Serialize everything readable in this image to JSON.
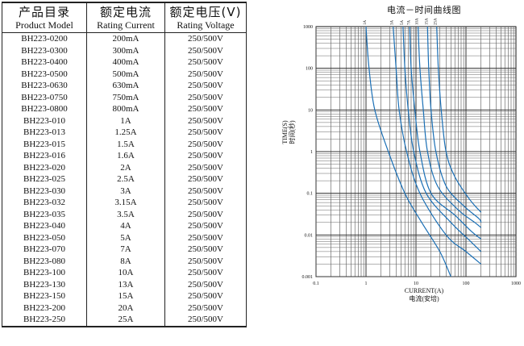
{
  "table": {
    "headers": [
      {
        "cn": "产品目录",
        "en": "Product Model"
      },
      {
        "cn": "额定电流",
        "en": "Rating Current"
      },
      {
        "cn": "额定电压(V)",
        "en": "Rating Voltage"
      }
    ],
    "rows": [
      [
        "BH223-0200",
        "200mA",
        "250/500V"
      ],
      [
        "BH223-0300",
        "300mA",
        "250/500V"
      ],
      [
        "BH223-0400",
        "400mA",
        "250/500V"
      ],
      [
        "BH223-0500",
        "500mA",
        "250/500V"
      ],
      [
        "BH223-0630",
        "630mA",
        "250/500V"
      ],
      [
        "BH223-0750",
        "750mA",
        "250/500V"
      ],
      [
        "BH223-0800",
        "800mA",
        "250/500V"
      ],
      [
        "BH223-010",
        "1A",
        "250/500V"
      ],
      [
        "BH223-013",
        "1.25A",
        "250/500V"
      ],
      [
        "BH223-015",
        "1.5A",
        "250/500V"
      ],
      [
        "BH223-016",
        "1.6A",
        "250/500V"
      ],
      [
        "BH223-020",
        "2A",
        "250/500V"
      ],
      [
        "BH223-025",
        "2.5A",
        "250/500V"
      ],
      [
        "BH223-030",
        "3A",
        "250/500V"
      ],
      [
        "BH223-032",
        "3.15A",
        "250/500V"
      ],
      [
        "BH223-035",
        "3.5A",
        "250/500V"
      ],
      [
        "BH223-040",
        "4A",
        "250/500V"
      ],
      [
        "BH223-050",
        "5A",
        "250/500V"
      ],
      [
        "BH223-070",
        "7A",
        "250/500V"
      ],
      [
        "BH223-080",
        "8A",
        "250/500V"
      ],
      [
        "BH223-100",
        "10A",
        "250/500V"
      ],
      [
        "BH223-130",
        "13A",
        "250/500V"
      ],
      [
        "BH223-150",
        "15A",
        "250/500V"
      ],
      [
        "BH223-200",
        "20A",
        "250/500V"
      ],
      [
        "BH223-250",
        "25A",
        "250/500V"
      ]
    ]
  },
  "chart": {
    "title": "电流－时间曲线图",
    "ylabel_en": "TIME(S)",
    "ylabel_cn": "时间(秒)",
    "xlabel_en": "CURRENT(A)",
    "xlabel_cn": "电流(安培)",
    "curve_color": "#1a6fb5"
  },
  "chart_data": {
    "type": "line",
    "title": "电流－时间曲线图",
    "xlabel": "CURRENT(A) 电流(安培)",
    "ylabel": "TIME(S) 时间(秒)",
    "xscale": "log",
    "yscale": "log",
    "xlim": [
      0.1,
      1000
    ],
    "ylim": [
      0.001,
      1000
    ],
    "x_ticks": [
      "0.1",
      "1",
      "10",
      "100",
      "1000"
    ],
    "y_ticks": [
      "1000",
      "100",
      "10",
      "1",
      "0.1",
      "0.01",
      "0.001"
    ],
    "grid": true,
    "series": [
      {
        "name": "1A",
        "points": [
          [
            1.0,
            1000
          ],
          [
            1.15,
            100
          ],
          [
            1.5,
            10
          ],
          [
            2.8,
            1
          ],
          [
            6,
            0.1
          ],
          [
            13,
            0.02
          ],
          [
            30,
            0.004
          ],
          [
            50,
            0.001
          ]
        ]
      },
      {
        "name": "3A",
        "points": [
          [
            3.5,
            1000
          ],
          [
            4,
            100
          ],
          [
            4.6,
            10
          ],
          [
            6.5,
            1
          ],
          [
            12,
            0.1
          ],
          [
            40,
            0.01
          ],
          [
            100,
            0.004
          ],
          [
            200,
            0.002
          ]
        ]
      },
      {
        "name": "5A",
        "points": [
          [
            5.5,
            1000
          ],
          [
            6,
            100
          ],
          [
            7,
            10
          ],
          [
            9,
            1
          ],
          [
            16,
            0.1
          ],
          [
            50,
            0.02
          ],
          [
            110,
            0.008
          ],
          [
            200,
            0.004
          ]
        ]
      },
      {
        "name": "7A",
        "points": [
          [
            7.5,
            1000
          ],
          [
            8,
            100
          ],
          [
            9.5,
            10
          ],
          [
            12,
            1
          ],
          [
            20,
            0.1
          ],
          [
            60,
            0.03
          ],
          [
            130,
            0.012
          ],
          [
            200,
            0.008
          ]
        ]
      },
      {
        "name": "10A",
        "points": [
          [
            11,
            1000
          ],
          [
            12,
            100
          ],
          [
            14,
            10
          ],
          [
            17,
            1
          ],
          [
            27,
            0.15
          ],
          [
            70,
            0.04
          ],
          [
            150,
            0.02
          ],
          [
            200,
            0.015
          ]
        ]
      },
      {
        "name": "15A",
        "points": [
          [
            17,
            1000
          ],
          [
            18,
            100
          ],
          [
            20,
            10
          ],
          [
            25,
            1
          ],
          [
            40,
            0.15
          ],
          [
            90,
            0.05
          ],
          [
            180,
            0.025
          ],
          [
            200,
            0.02
          ]
        ]
      },
      {
        "name": "25A",
        "points": [
          [
            26,
            1000
          ],
          [
            28,
            100
          ],
          [
            32,
            10
          ],
          [
            40,
            1
          ],
          [
            60,
            0.25
          ],
          [
            120,
            0.07
          ],
          [
            200,
            0.035
          ]
        ]
      }
    ]
  }
}
